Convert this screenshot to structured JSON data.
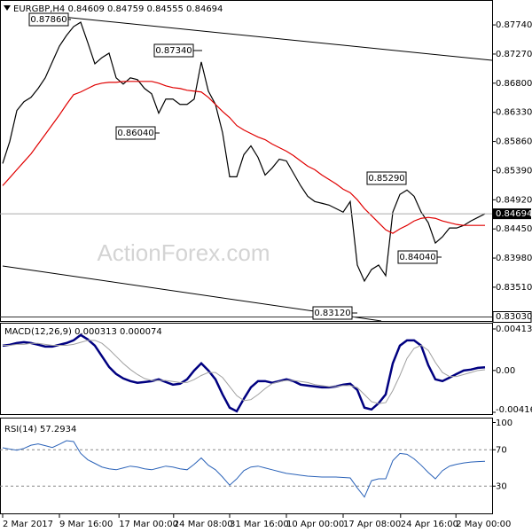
{
  "chart_data": [
    {
      "type": "line",
      "title": "EURGBP,H4  0.84609 0.84759 0.84555 0.84694",
      "watermark": "ActionForex.com",
      "xlim": [
        0,
        68
      ],
      "xticks": [
        {
          "value": 0,
          "label": "2 Mar 2017"
        },
        {
          "value": 8,
          "label": "9 Mar 16:00"
        },
        {
          "value": 16.4,
          "label": "17 Mar 00:00"
        },
        {
          "value": 24.1,
          "label": "24 Mar 08:00"
        },
        {
          "value": 32,
          "label": "31 Mar 16:00"
        },
        {
          "value": 40,
          "label": "10 Apr 00:00"
        },
        {
          "value": 48,
          "label": "17 Apr 08:00"
        },
        {
          "value": 56.1,
          "label": "24 Apr 16:00"
        },
        {
          "value": 63.9,
          "label": "2 May 00:00"
        }
      ],
      "ylim": [
        0.8298,
        0.8807
      ],
      "yticks": [
        {
          "value": 0.8774,
          "label": "0.87740"
        },
        {
          "value": 0.8727,
          "label": "0.87270"
        },
        {
          "value": 0.868,
          "label": "0.86800"
        },
        {
          "value": 0.8633,
          "label": "0.86330"
        },
        {
          "value": 0.8586,
          "label": "0.85860"
        },
        {
          "value": 0.8539,
          "label": "0.85390"
        },
        {
          "value": 0.8492,
          "label": "0.84920"
        },
        {
          "value": 0.8445,
          "label": "0.84450"
        },
        {
          "value": 0.8398,
          "label": "0.83980"
        },
        {
          "value": 0.8351,
          "label": "0.83510"
        },
        {
          "value": 0.8303,
          "label": "0.83030"
        }
      ],
      "series": [
        {
          "name": "EURGBP",
          "color": "#000000",
          "values": [
            0.85504,
            0.8586,
            0.86359,
            0.86501,
            0.86572,
            0.86715,
            0.86886,
            0.87142,
            0.87398,
            0.87569,
            0.87712,
            0.87783,
            0.87455,
            0.87113,
            0.87213,
            0.87284,
            0.86886,
            0.86786,
            0.86886,
            0.86857,
            0.86715,
            0.86629,
            0.86316,
            0.86544,
            0.86544,
            0.86458,
            0.86458,
            0.86544,
            0.87142,
            0.86672,
            0.86458,
            0.86003,
            0.85291,
            0.85291,
            0.85647,
            0.85789,
            0.85604,
            0.85319,
            0.85433,
            0.85575,
            0.85547,
            0.85348,
            0.85148,
            0.84977,
            0.84892,
            0.84864,
            0.84835,
            0.84778,
            0.84721,
            0.84892,
            0.83867,
            0.8361,
            0.83796,
            0.83867,
            0.83696,
            0.84721,
            0.85006,
            0.85077,
            0.84977,
            0.84721,
            0.8455,
            0.84223,
            0.84322,
            0.84465,
            0.84465,
            0.84507,
            0.84578,
            0.84636,
            0.84694
          ]
        },
        {
          "name": "MA",
          "color": "#e00000",
          "values": [
            0.85148,
            0.85276,
            0.85405,
            0.85533,
            0.85661,
            0.85818,
            0.85974,
            0.86131,
            0.86288,
            0.86458,
            0.86615,
            0.86658,
            0.86715,
            0.86772,
            0.868,
            0.86814,
            0.86814,
            0.86829,
            0.86829,
            0.86829,
            0.86829,
            0.86829,
            0.868,
            0.86757,
            0.86729,
            0.86715,
            0.86686,
            0.86672,
            0.86658,
            0.86572,
            0.86458,
            0.86344,
            0.86245,
            0.86117,
            0.86045,
            0.85988,
            0.85932,
            0.85889,
            0.85818,
            0.85761,
            0.85704,
            0.85632,
            0.85547,
            0.85462,
            0.85405,
            0.85319,
            0.85248,
            0.85177,
            0.85091,
            0.85034,
            0.8492,
            0.84778,
            0.84664,
            0.8455,
            0.84436,
            0.84379,
            0.84451,
            0.84507,
            0.84578,
            0.84621,
            0.84636,
            0.84621,
            0.84578,
            0.8455,
            0.84522,
            0.84507,
            0.84507,
            0.84507,
            0.84507
          ]
        }
      ],
      "annotations": [
        {
          "text": "0.87860"
        },
        {
          "text": "0.87340"
        },
        {
          "text": "0.86040"
        },
        {
          "text": "0.85290"
        },
        {
          "text": "0.84040"
        },
        {
          "text": "0.83120"
        }
      ]
    },
    {
      "type": "line",
      "title": "MACD(12,26,9) 0.000313 0.000074",
      "xlim": [
        0,
        68
      ],
      "ylim": [
        -0.004162,
        0.004131
      ],
      "yticks": [
        0.004131,
        {
          "value": 0,
          "label": "0.00"
        },
        -0.004162
      ],
      "series": [
        {
          "name": "MACD",
          "color": "#000080",
          "width": 2.5,
          "values": [
            0.00247,
            0.00256,
            0.00273,
            0.00282,
            0.00273,
            0.00256,
            0.00238,
            0.00238,
            0.00256,
            0.00273,
            0.003,
            0.00353,
            0.00309,
            0.00247,
            0.00141,
            0.00035,
            -0.00035,
            -0.00079,
            -0.00106,
            -0.00123,
            -0.00115,
            -0.00106,
            -0.00088,
            -0.00115,
            -0.00141,
            -0.00132,
            -0.00088,
            0,
            0.00071,
            0,
            -0.00088,
            -0.00238,
            -0.0037,
            -0.00406,
            -0.00282,
            -0.00168,
            -0.00106,
            -0.00106,
            -0.00123,
            -0.00106,
            -0.00088,
            -0.00106,
            -0.00141,
            -0.0015,
            -0.00159,
            -0.00168,
            -0.00168,
            -0.00159,
            -0.00141,
            -0.00132,
            -0.00194,
            -0.0037,
            -0.00388,
            -0.00326,
            -0.00238,
            0.00071,
            0.00247,
            0.003,
            0.003,
            0.00247,
            0.00053,
            -0.00088,
            -0.00106,
            -0.00071,
            -0.00035,
            0,
            9e-05,
            0.00026,
            0.000313
          ]
        },
        {
          "name": "Signal",
          "color": "#a0a0a0",
          "width": 1,
          "values": [
            0.0025,
            0.0025,
            0.0026,
            0.0026,
            0.0027,
            0.0027,
            0.0026,
            0.0025,
            0.0025,
            0.0025,
            0.0026,
            0.0028,
            0.003,
            0.003,
            0.0027,
            0.0021,
            0.0014,
            0.0007,
            0.0001,
            -0.0004,
            -0.0008,
            -0.001,
            -0.001,
            -0.001,
            -0.0011,
            -0.0012,
            -0.0012,
            -0.0009,
            -0.0005,
            -0.0002,
            -0.0002,
            -0.0007,
            -0.0016,
            -0.0025,
            -0.003,
            -0.0029,
            -0.0024,
            -0.0018,
            -0.0013,
            -0.0011,
            -0.001,
            -0.001,
            -0.0011,
            -0.0012,
            -0.0014,
            -0.0015,
            -0.0016,
            -0.0016,
            -0.0015,
            -0.0015,
            -0.0017,
            -0.0024,
            -0.0031,
            -0.0033,
            -0.0032,
            -0.002,
            -0.0005,
            0.0012,
            0.0022,
            0.0025,
            0.002,
            0.0008,
            -0.0002,
            -0.0006,
            -0.0006,
            -0.0004,
            -0.0002,
            0,
            7.4e-05
          ]
        }
      ]
    },
    {
      "type": "line",
      "title": "RSI(14) 57.2934",
      "xlim": [
        0,
        68
      ],
      "ylim": [
        0,
        100
      ],
      "yticks": [
        100,
        70,
        30
      ],
      "grid": "dashed",
      "series": [
        {
          "name": "RSI",
          "color": "#2a62b8",
          "width": 1,
          "values": [
            72.2,
            70.8,
            69.5,
            71.5,
            75,
            76.5,
            74.5,
            72.5,
            76,
            80,
            79,
            66,
            59,
            55,
            51,
            49,
            48,
            50,
            52,
            51,
            49,
            48,
            50,
            52,
            51,
            49,
            48,
            54,
            61,
            53,
            48,
            40,
            31,
            38,
            47,
            51,
            52,
            50,
            48,
            46,
            44,
            43,
            42,
            41,
            40.5,
            40,
            40,
            40,
            39.5,
            39,
            28,
            18,
            36,
            38,
            38,
            58,
            66,
            65,
            60,
            53,
            45,
            38,
            47,
            52,
            54,
            55.5,
            56.5,
            57,
            57.2934
          ]
        }
      ]
    }
  ]
}
